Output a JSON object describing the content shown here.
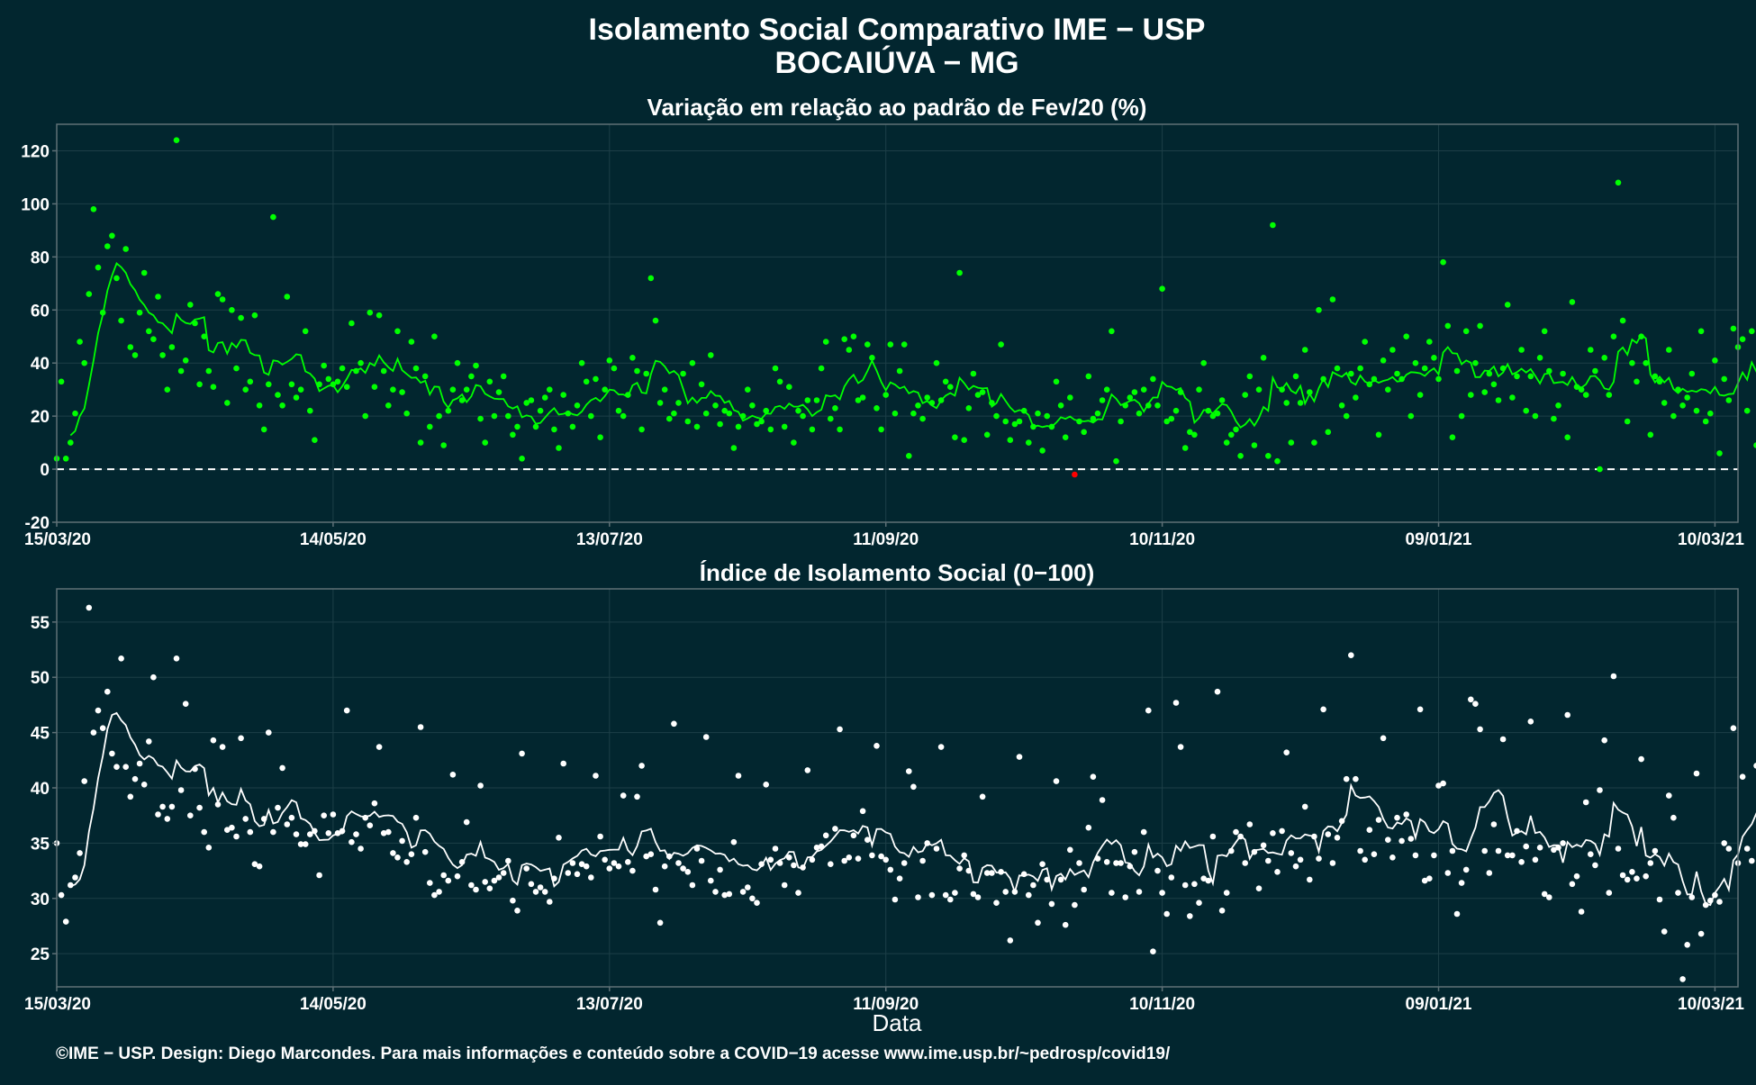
{
  "header": {
    "title": "Isolamento Social Comparativo IME − USP",
    "subtitle": "BOCAIÚVA − MG"
  },
  "footer": {
    "xlabel": "Data",
    "caption": "©IME − USP. Design: Diego Marcondes. Para mais informações e conteúdo sobre a COVID−19 acesse www.ime.usp.br/~pedrosp/covid19/"
  },
  "colors": {
    "background": "#02262f",
    "panel_border": "#5f7177",
    "grid": "#1d3f47",
    "variation_points": "#00ff00",
    "variation_line": "#00ff00",
    "negative_points": "#ff0000",
    "index_points": "#ffffff",
    "index_line": "#ffffff",
    "zero_line": "#ffffff"
  },
  "chart_data": [
    {
      "type": "scatter",
      "title": "Variação em relação ao padrão de Fev/20 (%)",
      "xlabel": "",
      "ylabel": "",
      "x_range": [
        "2020-03-15",
        "2021-03-15"
      ],
      "ylim": [
        -20,
        130
      ],
      "yticks": [
        -20,
        0,
        20,
        40,
        60,
        80,
        100,
        120
      ],
      "xticks": [
        "15/03/20",
        "14/05/20",
        "13/07/20",
        "11/09/20",
        "10/11/20",
        "09/01/21",
        "10/03/21"
      ],
      "grid": true,
      "reference_line": {
        "y": 0,
        "style": "dashed"
      },
      "rolling_average": "7-day moving average line",
      "daily_values": [
        4,
        33,
        4,
        10,
        21,
        48,
        40,
        66,
        98,
        76,
        59,
        84,
        88,
        72,
        56,
        83,
        46,
        43,
        59,
        74,
        52,
        49,
        65,
        43,
        30,
        46,
        124,
        37,
        41,
        62,
        55,
        32,
        50,
        37,
        31,
        66,
        64,
        25,
        60,
        38,
        57,
        30,
        33,
        58,
        24,
        15,
        32,
        95,
        28,
        24,
        65,
        32,
        27,
        30,
        52,
        22,
        11,
        32,
        39,
        34,
        32,
        33,
        38,
        31,
        55,
        37,
        40,
        20,
        59,
        31,
        58,
        37,
        24,
        30,
        52,
        29,
        21,
        48,
        38,
        10,
        35,
        16,
        50,
        20,
        9,
        22,
        30,
        40,
        26,
        30,
        35,
        39,
        19,
        10,
        33,
        20,
        29,
        35,
        20,
        13,
        16,
        4,
        25,
        26,
        16,
        22,
        27,
        30,
        15,
        8,
        28,
        21,
        16,
        24,
        40,
        33,
        20,
        34,
        12,
        30,
        41,
        38,
        22,
        20,
        28,
        42,
        37,
        15,
        36,
        72,
        56,
        25,
        30,
        19,
        21,
        25,
        36,
        18,
        40,
        16,
        32,
        21,
        43,
        24,
        17,
        22,
        21,
        8,
        16,
        20,
        30,
        24,
        17,
        18,
        22,
        15,
        38,
        33,
        16,
        31,
        10,
        22,
        20,
        26,
        15,
        26,
        38,
        48,
        19,
        23,
        15,
        49,
        45,
        50,
        26,
        27,
        47,
        42,
        23,
        15,
        28,
        47,
        21,
        37,
        47,
        5,
        21,
        24,
        19,
        27,
        25,
        40,
        26,
        33,
        31,
        12,
        74,
        11,
        23,
        36,
        28,
        29,
        13,
        25,
        20,
        47,
        18,
        11,
        17,
        18,
        22,
        10,
        16,
        21,
        7,
        20,
        16,
        33,
        24,
        12,
        27,
        -2,
        18,
        14,
        35,
        19,
        21,
        26,
        30,
        52,
        3,
        18,
        24,
        27,
        29,
        21,
        30,
        24,
        34,
        24,
        68,
        18,
        19,
        22,
        29,
        8,
        14,
        13,
        30,
        40,
        22,
        20,
        21,
        26,
        10,
        13,
        15,
        5,
        28,
        35,
        9,
        30,
        42,
        5,
        92,
        3,
        30,
        25,
        10,
        35,
        25,
        45,
        29,
        10,
        60,
        34,
        14,
        64,
        38,
        24,
        20,
        36,
        27,
        38,
        48,
        32,
        34,
        13,
        41,
        30,
        45,
        36,
        34,
        50,
        20,
        40,
        28,
        38,
        48,
        42,
        34,
        78,
        54,
        12,
        37,
        20,
        52,
        28,
        40,
        54,
        29,
        36,
        32,
        26,
        38,
        62,
        27,
        35,
        45,
        22,
        35,
        20,
        42,
        52,
        37,
        19,
        24,
        36,
        12,
        63,
        31,
        30,
        28,
        45,
        37,
        0,
        42,
        28,
        50,
        108,
        56,
        18,
        40,
        33,
        50,
        40,
        13,
        35,
        33,
        25,
        45,
        20,
        30,
        24,
        27,
        36,
        22,
        52,
        18,
        21,
        41,
        6,
        34,
        26,
        53,
        46,
        49,
        22,
        52,
        9,
        51,
        28,
        28,
        34,
        39,
        27,
        48,
        14,
        9,
        35,
        30,
        8,
        34,
        29,
        26,
        25,
        21,
        34,
        38,
        50,
        30,
        33,
        33,
        53,
        57,
        48,
        20,
        11,
        25,
        20,
        40,
        23,
        35,
        12,
        30,
        40,
        26,
        28,
        20,
        15,
        37,
        17,
        23,
        20,
        14,
        27,
        16,
        9,
        -15,
        14,
        10,
        16,
        17,
        21,
        12,
        5,
        16,
        27,
        30,
        17,
        34,
        43,
        42,
        29,
        45,
        45,
        43,
        19,
        45
      ],
      "negative_days_highlighted": true
    },
    {
      "type": "scatter",
      "title": "Índice de Isolamento Social (0−100)",
      "xlabel": "Data",
      "ylabel": "",
      "x_range": [
        "2020-03-15",
        "2021-03-15"
      ],
      "ylim": [
        22,
        58
      ],
      "yticks": [
        25,
        30,
        35,
        40,
        45,
        50,
        55
      ],
      "xticks": [
        "15/03/20",
        "14/05/20",
        "13/07/20",
        "11/09/20",
        "10/11/20",
        "09/01/21",
        "10/03/21"
      ],
      "grid": true,
      "rolling_average": "7-day moving average line",
      "daily_values": [
        35.0,
        30.3,
        27.9,
        31.2,
        31.9,
        34.1,
        40.6,
        56.3,
        45.0,
        47.0,
        45.4,
        48.7,
        43.1,
        41.9,
        51.7,
        41.9,
        39.2,
        40.8,
        42.2,
        40.3,
        44.2,
        50.0,
        37.6,
        38.3,
        37.2,
        38.3,
        51.7,
        39.8,
        47.6,
        37.5,
        41.7,
        38.2,
        36.0,
        34.6,
        44.3,
        38.5,
        43.7,
        36.2,
        36.4,
        35.6,
        44.5,
        37.2,
        36.0,
        33.1,
        32.9,
        37.2,
        45.0,
        36.0,
        38.2,
        41.8,
        36.7,
        37.3,
        35.8,
        34.9,
        34.9,
        35.8,
        36.1,
        32.1,
        37.5,
        35.9,
        37.6,
        35.9,
        36.1,
        47.0,
        35.1,
        35.8,
        34.5,
        37.3,
        36.6,
        38.6,
        43.7,
        35.9,
        36.0,
        34.1,
        33.7,
        35.2,
        33.3,
        34.0,
        37.3,
        45.5,
        34.2,
        31.4,
        30.3,
        30.6,
        32.1,
        31.6,
        41.2,
        32.0,
        33.3,
        36.9,
        31.2,
        30.8,
        40.2,
        31.5,
        30.9,
        31.6,
        31.9,
        32.3,
        33.4,
        29.8,
        28.9,
        43.1,
        32.7,
        31.3,
        30.6,
        31.0,
        30.6,
        29.7,
        31.8,
        35.5,
        42.2,
        32.3,
        33.2,
        32.2,
        33.1,
        32.9,
        31.9,
        41.1,
        35.6,
        33.5,
        32.7,
        33.2,
        32.9,
        39.3,
        33.3,
        32.5,
        39.2,
        42.0,
        33.8,
        34.0,
        30.8,
        27.8,
        32.9,
        33.8,
        45.8,
        33.2,
        32.7,
        32.4,
        31.2,
        34.5,
        33.4,
        44.6,
        31.6,
        30.6,
        32.6,
        30.3,
        30.4,
        35.1,
        41.1,
        30.6,
        31.0,
        30.0,
        29.6,
        33.1,
        40.3,
        33.5,
        34.5,
        33.2,
        31.2,
        33.7,
        33.0,
        30.5,
        32.8,
        41.6,
        33.5,
        34.6,
        34.7,
        35.7,
        33.1,
        36.3,
        45.3,
        33.4,
        33.7,
        35.7,
        33.6,
        37.9,
        35.3,
        33.9,
        43.8,
        33.8,
        33.5,
        32.6,
        29.9,
        31.8,
        33.2,
        41.5,
        40.1,
        30.1,
        33.4,
        35.0,
        30.3,
        34.5,
        43.7,
        30.3,
        29.9,
        30.5,
        32.7,
        33.9,
        32.5,
        30.4,
        30.1,
        39.2,
        32.3,
        32.3,
        29.6,
        32.4,
        30.6,
        26.2,
        30.6,
        42.8,
        32.2,
        30.3,
        31.2,
        27.8,
        33.1,
        31.7,
        29.5,
        40.6,
        31.7,
        27.6,
        34.4,
        29.4,
        33.2,
        30.8,
        36.4,
        41.0,
        33.6,
        38.9,
        33.3,
        30.5,
        33.2,
        33.2,
        30.1,
        32.9,
        34.2,
        30.6,
        36.0,
        47.0,
        25.2,
        32.5,
        30.5,
        28.6,
        31.9,
        47.7,
        43.7,
        31.2,
        28.4,
        31.3,
        29.6,
        31.8,
        31.6,
        35.6,
        48.7,
        28.9,
        30.5,
        34.3,
        36.0,
        35.6,
        33.2,
        36.7,
        34.2,
        30.9,
        34.8,
        33.4,
        35.9,
        32.4,
        36.1,
        43.2,
        34.1,
        32.9,
        33.5,
        38.3,
        31.7,
        35.6,
        33.6,
        47.1,
        35.8,
        33.2,
        35.5,
        37.0,
        40.8,
        52.0,
        40.8,
        34.3,
        33.5,
        36.2,
        34.0,
        37.1,
        44.5,
        35.3,
        33.7,
        37.3,
        35.2,
        37.6,
        35.4,
        33.9,
        47.1,
        31.6,
        31.8,
        33.9,
        40.2,
        40.4,
        32.3,
        34.3,
        28.6,
        31.4,
        32.6,
        48.0,
        47.6,
        45.3,
        34.3,
        32.3,
        36.7,
        34.3,
        44.4,
        33.9,
        33.9,
        36.1,
        33.3,
        34.7,
        46.0,
        33.5,
        34.6,
        30.4,
        30.1,
        34.4,
        34.6,
        35.0,
        46.6,
        31.3,
        32.0,
        28.8,
        38.7,
        34.0,
        33.0,
        39.8,
        44.3,
        30.5,
        50.1,
        34.5,
        32.1,
        31.7,
        32.4,
        31.8,
        42.6,
        32.0,
        33.2,
        34.3,
        29.9,
        27.0,
        39.3,
        37.3,
        30.5,
        22.7,
        25.8,
        30.1,
        41.3,
        26.8,
        29.4,
        29.8,
        30.3,
        29.7,
        35.0,
        34.5,
        45.4,
        33.2,
        41.0,
        34.5,
        33.4,
        42.0,
        40.3,
        33.0
      ]
    }
  ]
}
